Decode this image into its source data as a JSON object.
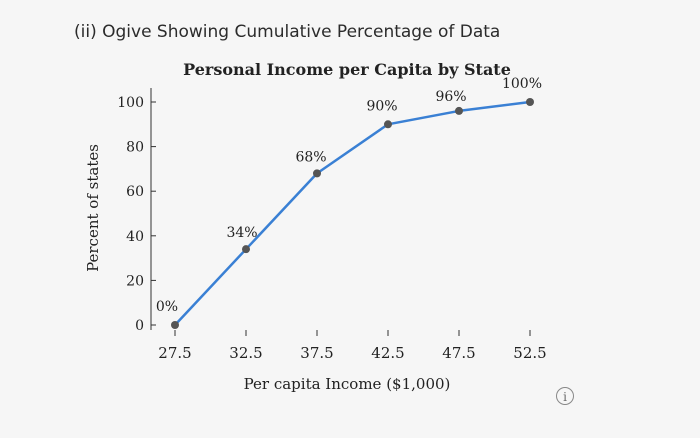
{
  "heading": "(ii) Ogive Showing Cumulative Percentage of Data",
  "info_icon": "info-icon",
  "chart_data": {
    "type": "line",
    "title": "Personal Income per Capita by State",
    "xlabel": "Per capita Income ($1,000)",
    "ylabel": "Percent of states",
    "x": [
      27.5,
      32.5,
      37.5,
      42.5,
      47.5,
      52.5
    ],
    "x_tick_labels": [
      "27.5",
      "32.5",
      "37.5",
      "42.5",
      "47.5",
      "52.5"
    ],
    "y_ticks": [
      0,
      20,
      40,
      60,
      80,
      100
    ],
    "series": [
      {
        "values": [
          0,
          34,
          68,
          90,
          96,
          100
        ],
        "point_labels": [
          "0%",
          "34%",
          "68%",
          "90%",
          "96%",
          "100%"
        ]
      }
    ],
    "line_color": "#3a80d4",
    "marker_color": "#555555",
    "ylim": [
      0,
      100
    ],
    "grid": false
  }
}
